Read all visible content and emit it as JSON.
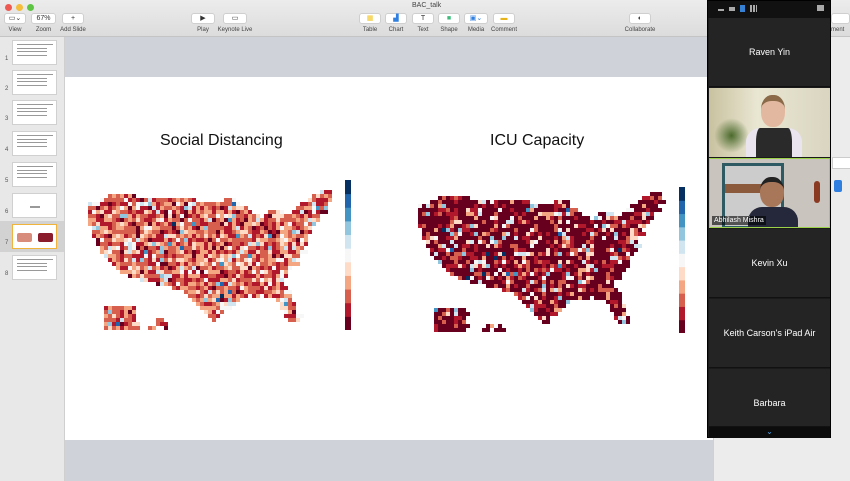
{
  "window": {
    "title": "BAC_talk"
  },
  "toolbar": {
    "view": "View",
    "zoom_value": "67%",
    "zoom": "Zoom",
    "add_slide": "Add Slide",
    "play": "Play",
    "keynote_live": "Keynote Live",
    "table": "Table",
    "chart": "Chart",
    "text": "Text",
    "shape": "Shape",
    "media": "Media",
    "comment": "Comment",
    "collaborate": "Collaborate",
    "format_partial": "ment"
  },
  "slides": [
    {
      "n": "1"
    },
    {
      "n": "2"
    },
    {
      "n": "3"
    },
    {
      "n": "4"
    },
    {
      "n": "5"
    },
    {
      "n": "6"
    },
    {
      "n": "7",
      "selected": true
    },
    {
      "n": "8"
    }
  ],
  "current_slide": {
    "left_title": "Social Distancing",
    "right_title": "ICU Capacity",
    "colormap": [
      "#67001f",
      "#b2182b",
      "#d6604d",
      "#f4a582",
      "#fddbc7",
      "#f7f7f7",
      "#d1e5f0",
      "#92c5de",
      "#4393c3",
      "#2166ac",
      "#053061"
    ]
  },
  "zoom_panel": {
    "participants": [
      {
        "name": "Raven Yin",
        "video": false
      },
      {
        "name": "",
        "video": true
      },
      {
        "name": "Abhilash Mishra",
        "video": true,
        "active": true
      },
      {
        "name": "Kevin Xu",
        "video": false
      },
      {
        "name": "Keith Carson's iPad Air",
        "video": false
      },
      {
        "name": "Barbara",
        "video": false
      }
    ]
  }
}
